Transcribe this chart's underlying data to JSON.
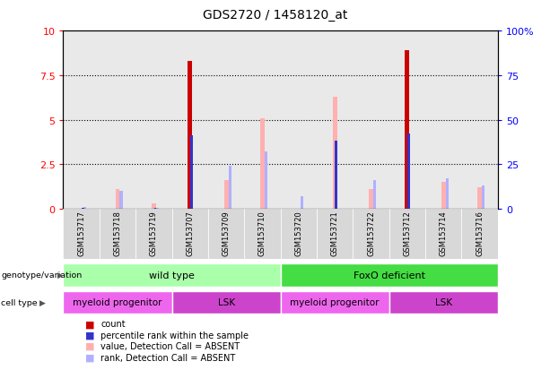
{
  "title": "GDS2720 / 1458120_at",
  "samples": [
    "GSM153717",
    "GSM153718",
    "GSM153719",
    "GSM153707",
    "GSM153709",
    "GSM153710",
    "GSM153720",
    "GSM153721",
    "GSM153722",
    "GSM153712",
    "GSM153714",
    "GSM153716"
  ],
  "count_values": [
    0,
    0,
    0,
    8.3,
    0,
    0,
    0,
    0,
    0,
    8.9,
    0,
    0
  ],
  "percentile_rank": [
    0.05,
    0,
    0.05,
    4.1,
    0,
    0,
    0,
    3.8,
    0,
    4.2,
    0,
    0
  ],
  "absent_value": [
    0,
    1.1,
    0.3,
    0,
    1.6,
    5.1,
    0,
    6.3,
    1.1,
    0,
    1.5,
    1.2
  ],
  "absent_rank": [
    0.08,
    1.0,
    0.05,
    0,
    2.4,
    3.2,
    0.7,
    0,
    1.6,
    0,
    1.7,
    1.3
  ],
  "ylim": [
    0,
    10
  ],
  "y2lim": [
    0,
    100
  ],
  "yticks": [
    0,
    2.5,
    5,
    7.5,
    10
  ],
  "y2ticks": [
    0,
    25,
    50,
    75,
    100
  ],
  "count_color": "#cc0000",
  "percentile_color": "#3333cc",
  "absent_value_color": "#ffb0b0",
  "absent_rank_color": "#b0b0ff",
  "genotype_groups": [
    {
      "label": "wild type",
      "start": 0,
      "end": 5,
      "color": "#aaffaa"
    },
    {
      "label": "FoxO deficient",
      "start": 6,
      "end": 11,
      "color": "#44dd44"
    }
  ],
  "cell_type_groups": [
    {
      "label": "myeloid progenitor",
      "start": 0,
      "end": 2,
      "color": "#ee66ee"
    },
    {
      "label": "LSK",
      "start": 3,
      "end": 5,
      "color": "#cc44cc"
    },
    {
      "label": "myeloid progenitor",
      "start": 6,
      "end": 8,
      "color": "#ee66ee"
    },
    {
      "label": "LSK",
      "start": 9,
      "end": 11,
      "color": "#cc44cc"
    }
  ],
  "legend_items": [
    {
      "label": "count",
      "color": "#cc0000"
    },
    {
      "label": "percentile rank within the sample",
      "color": "#3333cc"
    },
    {
      "label": "value, Detection Call = ABSENT",
      "color": "#ffb0b0"
    },
    {
      "label": "rank, Detection Call = ABSENT",
      "color": "#b0b0ff"
    }
  ],
  "col_bg_color": "#d8d8d8",
  "plot_bg_color": "#ffffff"
}
